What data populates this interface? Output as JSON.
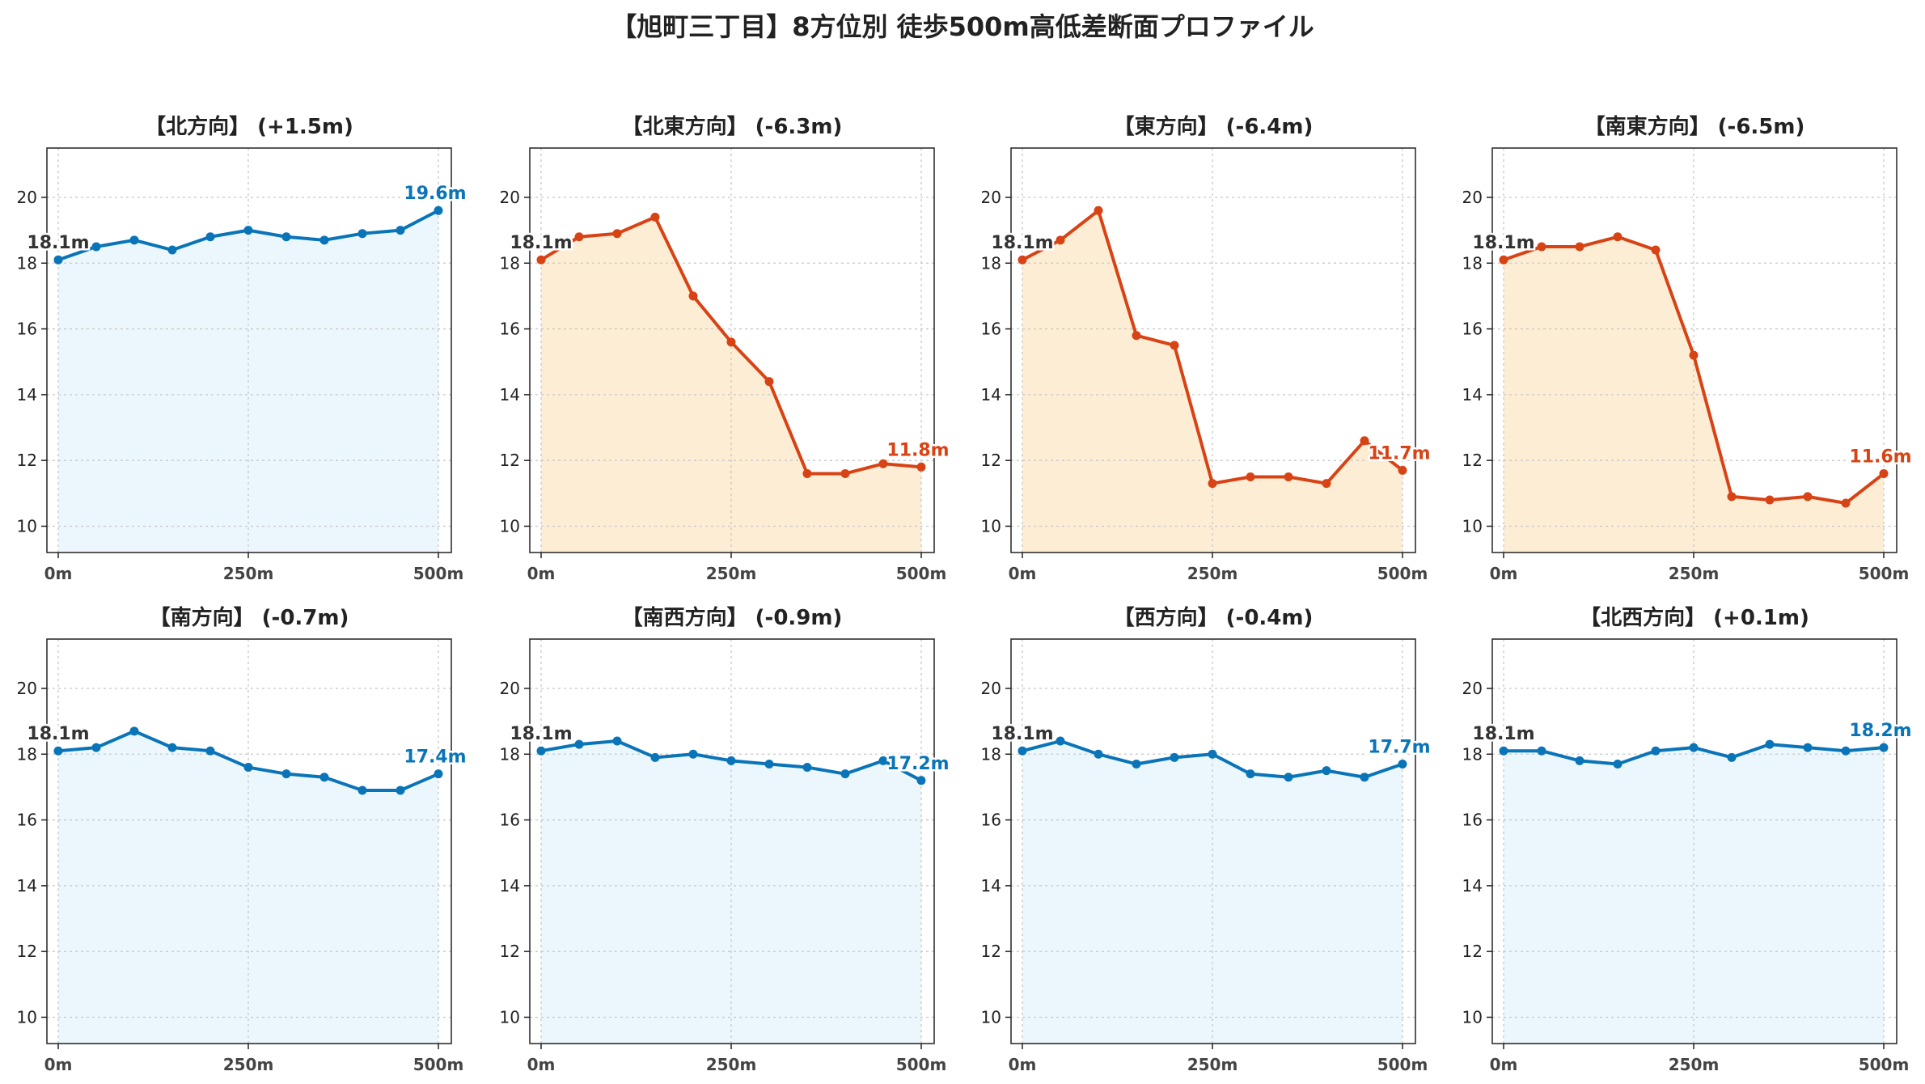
{
  "title": "【旭町三丁目】8方位別 徒歩500m高低差断面プロファイル",
  "colors": {
    "rise": "#1f77b4",
    "drop": "#d62728",
    "rise_line": "#0a74b8",
    "drop_line": "#d84315",
    "rise_fill": "#ebf7fc",
    "drop_fill": "#fdedd4",
    "start_label": "#333333"
  },
  "chart_data": [
    {
      "type": "line",
      "title": "【北方向】 (+1.5m)",
      "trend": "rise",
      "x": [
        0,
        50,
        100,
        150,
        200,
        250,
        300,
        350,
        400,
        450,
        500
      ],
      "y": [
        18.1,
        18.5,
        18.7,
        18.4,
        18.8,
        19.0,
        18.8,
        18.7,
        18.9,
        19.0,
        19.6
      ],
      "start_label": "18.1m",
      "end_label": "19.6m",
      "xticks": [
        "0m",
        "250m",
        "500m"
      ],
      "yticks": [
        10,
        12,
        14,
        16,
        18,
        20
      ],
      "ylim": [
        9.2,
        21.5
      ],
      "grid": true
    },
    {
      "type": "line",
      "title": "【北東方向】 (-6.3m)",
      "trend": "drop",
      "x": [
        0,
        50,
        100,
        150,
        200,
        250,
        300,
        350,
        400,
        450,
        500
      ],
      "y": [
        18.1,
        18.8,
        18.9,
        19.4,
        17.0,
        15.6,
        14.4,
        11.6,
        11.6,
        11.9,
        11.8
      ],
      "start_label": "18.1m",
      "end_label": "11.8m",
      "xticks": [
        "0m",
        "250m",
        "500m"
      ],
      "yticks": [
        10,
        12,
        14,
        16,
        18,
        20
      ],
      "ylim": [
        9.2,
        21.5
      ],
      "grid": true
    },
    {
      "type": "line",
      "title": "【東方向】 (-6.4m)",
      "trend": "drop",
      "x": [
        0,
        50,
        100,
        150,
        200,
        250,
        300,
        350,
        400,
        450,
        500
      ],
      "y": [
        18.1,
        18.7,
        19.6,
        15.8,
        15.5,
        11.3,
        11.5,
        11.5,
        11.3,
        12.6,
        11.7
      ],
      "start_label": "18.1m",
      "end_label": "11.7m",
      "xticks": [
        "0m",
        "250m",
        "500m"
      ],
      "yticks": [
        10,
        12,
        14,
        16,
        18,
        20
      ],
      "ylim": [
        9.2,
        21.5
      ],
      "grid": true
    },
    {
      "type": "line",
      "title": "【南東方向】 (-6.5m)",
      "trend": "drop",
      "x": [
        0,
        50,
        100,
        150,
        200,
        250,
        300,
        350,
        400,
        450,
        500
      ],
      "y": [
        18.1,
        18.5,
        18.5,
        18.8,
        18.4,
        15.2,
        10.9,
        10.8,
        10.9,
        10.7,
        11.6
      ],
      "start_label": "18.1m",
      "end_label": "11.6m",
      "xticks": [
        "0m",
        "250m",
        "500m"
      ],
      "yticks": [
        10,
        12,
        14,
        16,
        18,
        20
      ],
      "ylim": [
        9.2,
        21.5
      ],
      "grid": true
    },
    {
      "type": "line",
      "title": "【南方向】 (-0.7m)",
      "trend": "rise",
      "x": [
        0,
        50,
        100,
        150,
        200,
        250,
        300,
        350,
        400,
        450,
        500
      ],
      "y": [
        18.1,
        18.2,
        18.7,
        18.2,
        18.1,
        17.6,
        17.4,
        17.3,
        16.9,
        16.9,
        17.4
      ],
      "start_label": "18.1m",
      "end_label": "17.4m",
      "xticks": [
        "0m",
        "250m",
        "500m"
      ],
      "yticks": [
        10,
        12,
        14,
        16,
        18,
        20
      ],
      "ylim": [
        9.2,
        21.5
      ],
      "grid": true
    },
    {
      "type": "line",
      "title": "【南西方向】 (-0.9m)",
      "trend": "rise",
      "x": [
        0,
        50,
        100,
        150,
        200,
        250,
        300,
        350,
        400,
        450,
        500
      ],
      "y": [
        18.1,
        18.3,
        18.4,
        17.9,
        18.0,
        17.8,
        17.7,
        17.6,
        17.4,
        17.8,
        17.2
      ],
      "start_label": "18.1m",
      "end_label": "17.2m",
      "xticks": [
        "0m",
        "250m",
        "500m"
      ],
      "yticks": [
        10,
        12,
        14,
        16,
        18,
        20
      ],
      "ylim": [
        9.2,
        21.5
      ],
      "grid": true
    },
    {
      "type": "line",
      "title": "【西方向】 (-0.4m)",
      "trend": "rise",
      "x": [
        0,
        50,
        100,
        150,
        200,
        250,
        300,
        350,
        400,
        450,
        500
      ],
      "y": [
        18.1,
        18.4,
        18.0,
        17.7,
        17.9,
        18.0,
        17.4,
        17.3,
        17.5,
        17.3,
        17.7
      ],
      "start_label": "18.1m",
      "end_label": "17.7m",
      "xticks": [
        "0m",
        "250m",
        "500m"
      ],
      "yticks": [
        10,
        12,
        14,
        16,
        18,
        20
      ],
      "ylim": [
        9.2,
        21.5
      ],
      "grid": true
    },
    {
      "type": "line",
      "title": "【北西方向】 (+0.1m)",
      "trend": "rise",
      "x": [
        0,
        50,
        100,
        150,
        200,
        250,
        300,
        350,
        400,
        450,
        500
      ],
      "y": [
        18.1,
        18.1,
        17.8,
        17.7,
        18.1,
        18.2,
        17.9,
        18.3,
        18.2,
        18.1,
        18.2
      ],
      "start_label": "18.1m",
      "end_label": "18.2m",
      "xticks": [
        "0m",
        "250m",
        "500m"
      ],
      "yticks": [
        10,
        12,
        14,
        16,
        18,
        20
      ],
      "ylim": [
        9.2,
        21.5
      ],
      "grid": true
    }
  ]
}
